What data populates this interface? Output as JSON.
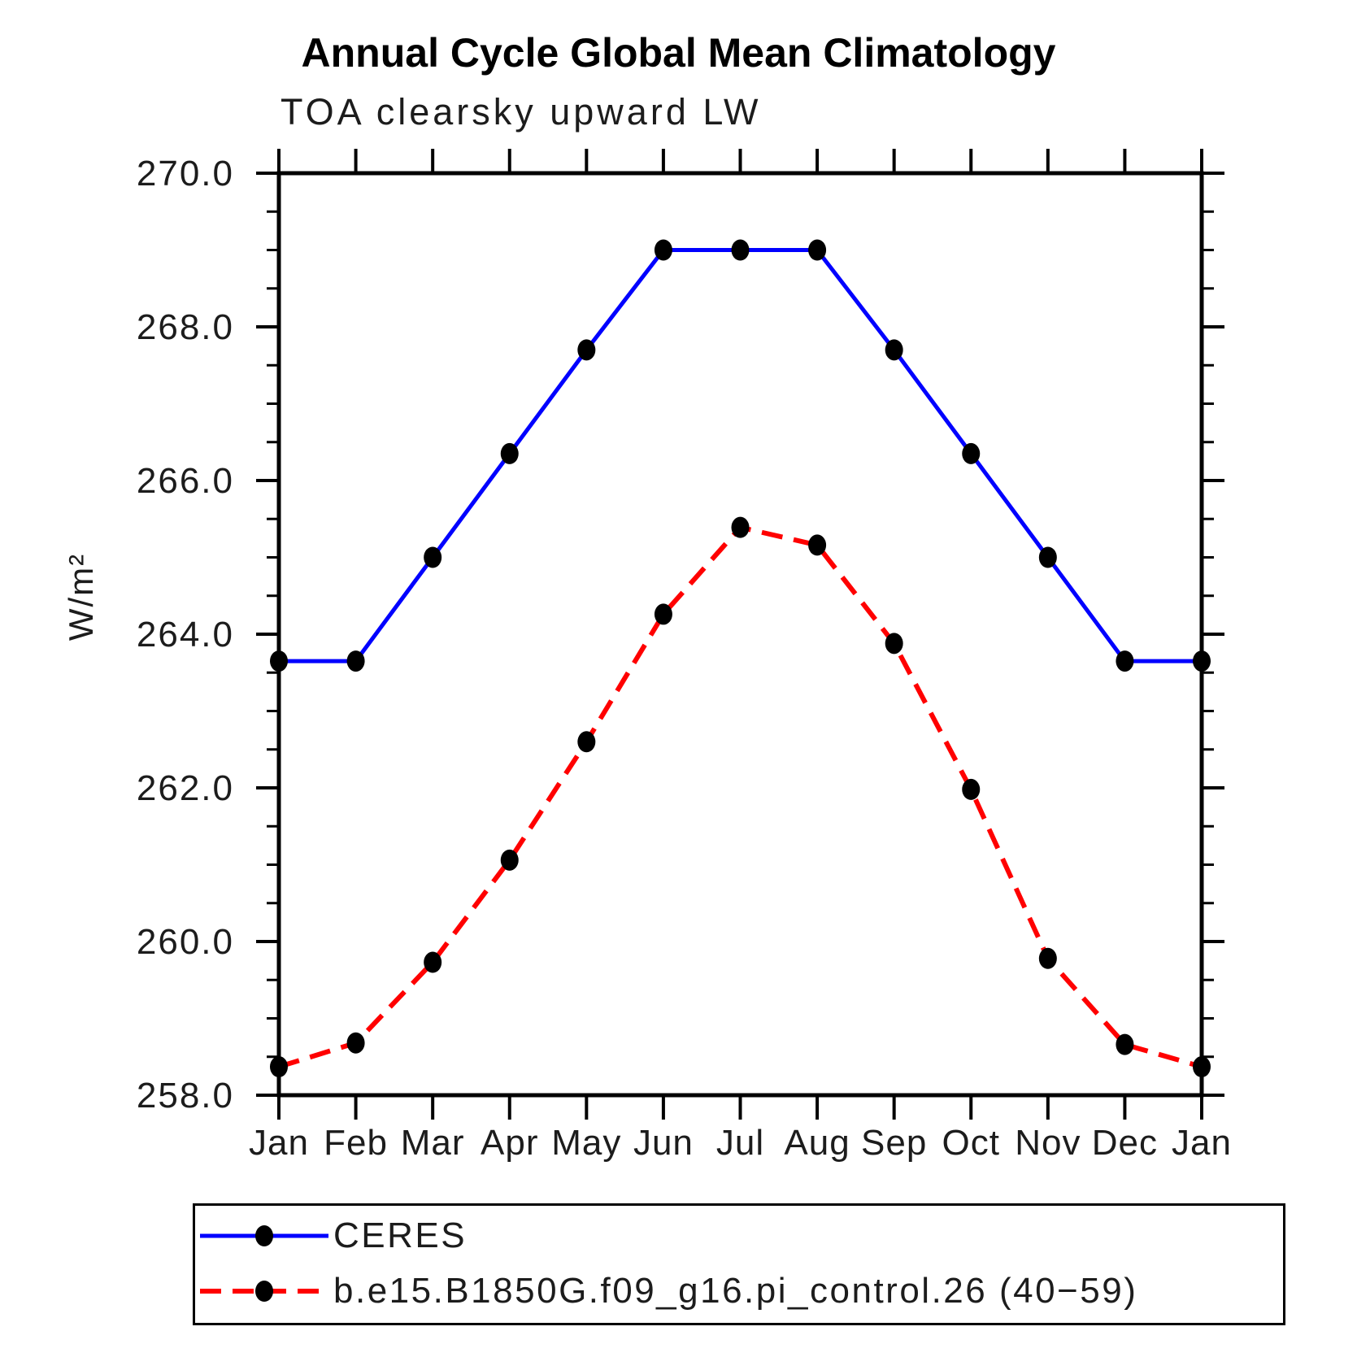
{
  "title": "Annual Cycle Global Mean Climatology",
  "subtitle": "TOA clearsky upward LW",
  "ylabel": "W/m²",
  "chart_data": {
    "type": "line",
    "categories": [
      "Jan",
      "Feb",
      "Mar",
      "Apr",
      "May",
      "Jun",
      "Jul",
      "Aug",
      "Sep",
      "Oct",
      "Nov",
      "Dec",
      "Jan"
    ],
    "series": [
      {
        "name": "CERES",
        "color": "#0000ff",
        "line_style": "solid",
        "marker": "filled-circle",
        "marker_color": "#000000",
        "values": [
          263.65,
          263.65,
          265.0,
          266.35,
          267.7,
          269.0,
          269.0,
          269.0,
          267.7,
          266.35,
          265.0,
          263.65,
          263.65
        ]
      },
      {
        "name": "b.e15.B1850G.f09_g16.pi_control.26 (40−59)",
        "color": "#ff0000",
        "line_style": "dashed",
        "marker": "filled-circle",
        "marker_color": "#000000",
        "values": [
          258.37,
          258.68,
          259.73,
          261.06,
          262.6,
          264.26,
          265.39,
          265.16,
          263.88,
          261.98,
          259.78,
          258.66,
          258.37
        ]
      }
    ],
    "ylim": [
      258.0,
      270.0
    ],
    "ytick_major_interval": 2.0,
    "ytick_minor_interval": 0.5,
    "ytick_labels": [
      "270.0",
      "268.0",
      "266.0",
      "264.0",
      "262.0",
      "260.0",
      "258.0"
    ],
    "xlabel": "",
    "grid": false,
    "legend_position": "bottom-left-box",
    "axis_color": "#000000",
    "text_color": "#1c1c1c"
  }
}
